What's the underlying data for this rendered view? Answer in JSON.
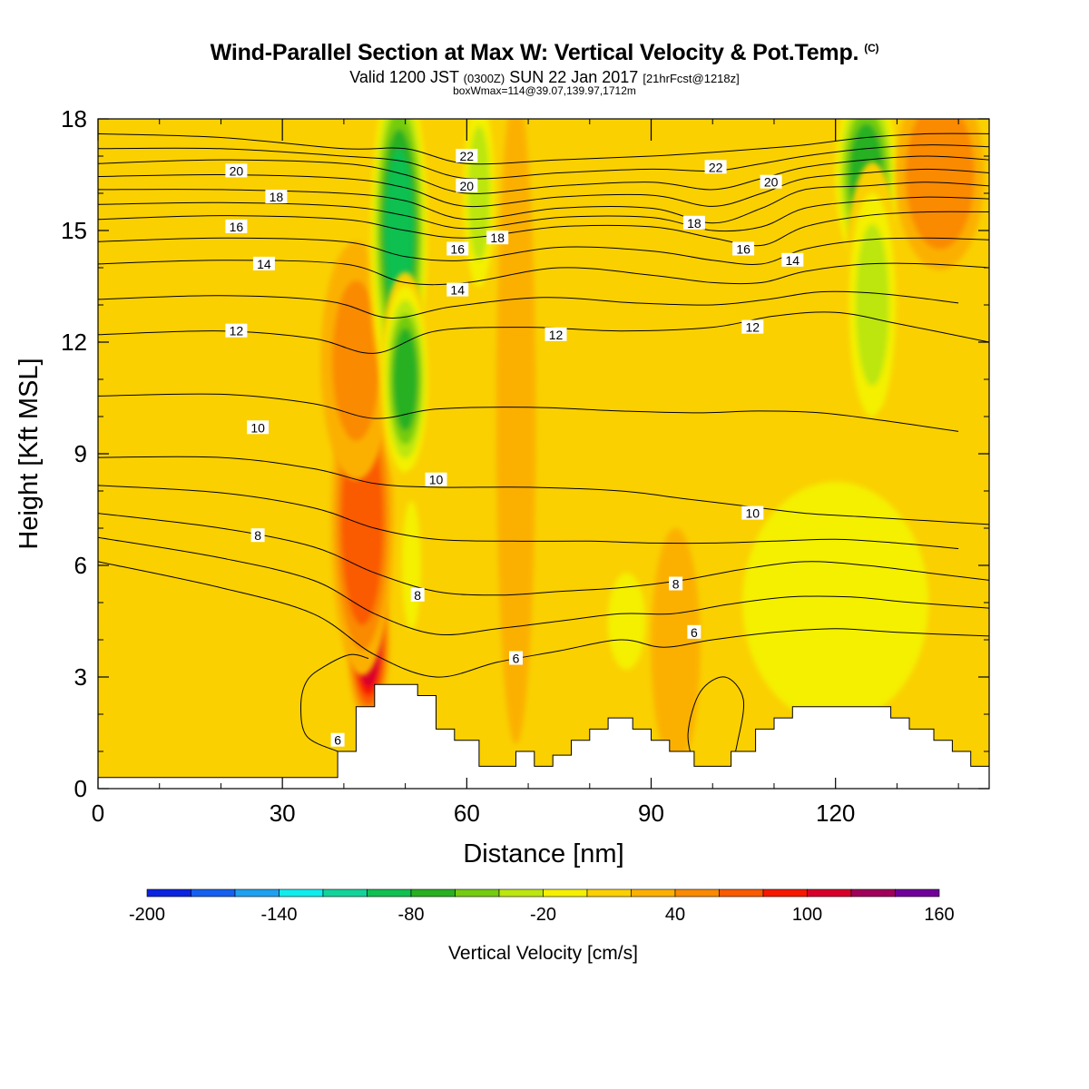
{
  "header": {
    "title": "Wind-Parallel Section at Max W: Vertical Velocity & Pot.Temp.",
    "title_unit": "(C)",
    "valid_prefix": "Valid 1200 JST",
    "valid_utc": "(0300Z)",
    "valid_date": "SUN 22 Jan 2017",
    "forecast": "[21hrFcst@1218z]",
    "box_info": "boxWmax=114@39.07,139.97,1712m"
  },
  "chart_data": {
    "type": "heatmap",
    "xlabel": "Distance [nm]",
    "ylabel": "Height [Kft MSL]",
    "xlim": [
      0,
      145
    ],
    "ylim": [
      0,
      18
    ],
    "x_ticks": [
      "0",
      "30",
      "60",
      "90",
      "120"
    ],
    "y_ticks": [
      "0",
      "3",
      "6",
      "9",
      "12",
      "15",
      "18"
    ],
    "colorbar": {
      "label": "Vertical Velocity [cm/s]",
      "tick_labels": [
        "-200",
        "-140",
        "-80",
        "-20",
        "40",
        "100",
        "160"
      ],
      "min": -200,
      "max": 160,
      "step": 20,
      "colors": [
        "#0b24e0",
        "#1660f0",
        "#1ea0f0",
        "#10ecec",
        "#12d49a",
        "#10c050",
        "#28b020",
        "#74cc10",
        "#bce610",
        "#f4f000",
        "#fad000",
        "#fbb000",
        "#fa8a00",
        "#fa5a00",
        "#f81800",
        "#d8002a",
        "#a0005a",
        "#70009a"
      ]
    },
    "shading": {
      "background_wcm_s": 10,
      "features": [
        {
          "name": "updraft-core",
          "x": 44,
          "y": 4.0,
          "peak": 114
        },
        {
          "name": "updraft-mid",
          "x": 43,
          "y": 7.2,
          "peak": 75
        },
        {
          "name": "updraft-upper",
          "x": 42,
          "y": 11.5,
          "peak": 40
        },
        {
          "name": "downdraft-upper",
          "x": 49,
          "y": 15.0,
          "peak": -100
        },
        {
          "name": "downdraft-mid",
          "x": 50,
          "y": 11.0,
          "peak": -65
        },
        {
          "name": "downdraft-low",
          "x": 51,
          "y": 6.0,
          "peak": -20
        },
        {
          "name": "downdraft-right-top",
          "x": 125,
          "y": 16.5,
          "peak": -70
        },
        {
          "name": "downdraft-right-mid",
          "x": 126,
          "y": 13.0,
          "peak": -30
        },
        {
          "name": "weak-down-60",
          "x": 62,
          "y": 16.0,
          "peak": -40
        },
        {
          "name": "weak-down-85",
          "x": 86,
          "y": 4.5,
          "peak": -20
        },
        {
          "name": "weak-down-128",
          "x": 128,
          "y": 7.0,
          "peak": -15
        },
        {
          "name": "right-low-region",
          "x": 120,
          "y": 5.0,
          "peak": -5
        },
        {
          "name": "right-top-updraft",
          "x": 137,
          "y": 16.5,
          "peak": 45
        },
        {
          "name": "updraft-68",
          "x": 68,
          "y": 10.0,
          "peak": 35
        },
        {
          "name": "updraft-95",
          "x": 94,
          "y": 3.8,
          "peak": 30
        }
      ]
    },
    "theta_contours": [
      {
        "value": 6,
        "points": [
          [
            0,
            6.1
          ],
          [
            20,
            5.4
          ],
          [
            35,
            4.7
          ],
          [
            45,
            3.6
          ],
          [
            55,
            3.0
          ],
          [
            65,
            3.4
          ],
          [
            75,
            3.7
          ],
          [
            85,
            4.0
          ],
          [
            92,
            3.8
          ],
          [
            100,
            4.0
          ],
          [
            110,
            4.2
          ],
          [
            120,
            4.3
          ],
          [
            130,
            4.2
          ],
          [
            145,
            4.1
          ]
        ]
      },
      {
        "value": 8,
        "points": [
          [
            0,
            7.4
          ],
          [
            20,
            7.0
          ],
          [
            35,
            6.5
          ],
          [
            45,
            5.8
          ],
          [
            55,
            5.3
          ],
          [
            65,
            5.2
          ],
          [
            75,
            5.3
          ],
          [
            85,
            5.4
          ],
          [
            95,
            5.6
          ],
          [
            105,
            5.9
          ],
          [
            115,
            6.1
          ],
          [
            125,
            6.0
          ],
          [
            135,
            5.8
          ],
          [
            145,
            5.6
          ]
        ]
      },
      {
        "value": 10,
        "points": [
          [
            0,
            8.9
          ],
          [
            20,
            8.9
          ],
          [
            35,
            8.6
          ],
          [
            45,
            8.2
          ],
          [
            55,
            8.1
          ],
          [
            70,
            8.1
          ],
          [
            85,
            8.0
          ],
          [
            95,
            7.8
          ],
          [
            105,
            7.6
          ],
          [
            115,
            7.4
          ],
          [
            125,
            7.3
          ],
          [
            135,
            7.2
          ],
          [
            145,
            7.1
          ]
        ]
      },
      {
        "value": 12,
        "points": [
          [
            0,
            12.2
          ],
          [
            20,
            12.3
          ],
          [
            35,
            12.1
          ],
          [
            45,
            11.7
          ],
          [
            55,
            12.3
          ],
          [
            70,
            12.4
          ],
          [
            85,
            12.3
          ],
          [
            100,
            12.4
          ],
          [
            110,
            12.7
          ],
          [
            120,
            12.8
          ],
          [
            130,
            12.5
          ],
          [
            145,
            12.0
          ]
        ]
      },
      {
        "value": 14,
        "points": [
          [
            0,
            14.1
          ],
          [
            20,
            14.2
          ],
          [
            40,
            14.1
          ],
          [
            50,
            13.6
          ],
          [
            60,
            13.6
          ],
          [
            75,
            14.0
          ],
          [
            90,
            13.8
          ],
          [
            100,
            13.6
          ],
          [
            108,
            13.6
          ],
          [
            115,
            13.9
          ],
          [
            125,
            14.1
          ],
          [
            135,
            14.1
          ],
          [
            145,
            14.0
          ]
        ]
      },
      {
        "value": 16,
        "points": [
          [
            0,
            15.3
          ],
          [
            20,
            15.4
          ],
          [
            40,
            15.3
          ],
          [
            50,
            15.0
          ],
          [
            60,
            14.8
          ],
          [
            75,
            15.1
          ],
          [
            90,
            15.1
          ],
          [
            100,
            14.8
          ],
          [
            108,
            14.6
          ],
          [
            115,
            15.1
          ],
          [
            125,
            15.4
          ],
          [
            135,
            15.5
          ],
          [
            145,
            15.5
          ]
        ]
      },
      {
        "value": 18,
        "points": [
          [
            0,
            16.1
          ],
          [
            20,
            16.1
          ],
          [
            40,
            16.0
          ],
          [
            50,
            15.8
          ],
          [
            60,
            15.3
          ],
          [
            75,
            15.6
          ],
          [
            90,
            15.6
          ],
          [
            100,
            15.2
          ],
          [
            108,
            15.6
          ],
          [
            115,
            16.1
          ],
          [
            125,
            16.2
          ],
          [
            135,
            16.3
          ],
          [
            145,
            16.2
          ]
        ]
      },
      {
        "value": 20,
        "points": [
          [
            0,
            16.8
          ],
          [
            20,
            16.9
          ],
          [
            40,
            16.8
          ],
          [
            50,
            16.5
          ],
          [
            60,
            16.0
          ],
          [
            75,
            16.2
          ],
          [
            90,
            16.3
          ],
          [
            100,
            16.1
          ],
          [
            108,
            16.4
          ],
          [
            115,
            16.7
          ],
          [
            125,
            16.9
          ],
          [
            135,
            17.0
          ],
          [
            145,
            16.9
          ]
        ]
      },
      {
        "value": 22,
        "points": [
          [
            0,
            17.6
          ],
          [
            20,
            17.5
          ],
          [
            40,
            17.2
          ],
          [
            50,
            17.2
          ],
          [
            60,
            16.8
          ],
          [
            75,
            16.9
          ],
          [
            90,
            17.0
          ],
          [
            100,
            17.1
          ],
          [
            108,
            17.2
          ],
          [
            115,
            17.3
          ],
          [
            125,
            17.5
          ],
          [
            135,
            17.6
          ],
          [
            145,
            17.6
          ]
        ]
      }
    ],
    "contour_labels": [
      {
        "text": "20",
        "x": 22.5,
        "y": 16.6
      },
      {
        "text": "18",
        "x": 29,
        "y": 15.9
      },
      {
        "text": "16",
        "x": 22.5,
        "y": 15.1
      },
      {
        "text": "14",
        "x": 27,
        "y": 14.1
      },
      {
        "text": "12",
        "x": 22.5,
        "y": 12.3
      },
      {
        "text": "10",
        "x": 26,
        "y": 9.7
      },
      {
        "text": "8",
        "x": 26,
        "y": 6.8
      },
      {
        "text": "6",
        "x": 39,
        "y": 1.3
      },
      {
        "text": "22",
        "x": 60,
        "y": 17.0
      },
      {
        "text": "20",
        "x": 60,
        "y": 16.2
      },
      {
        "text": "18",
        "x": 65,
        "y": 14.8
      },
      {
        "text": "16",
        "x": 58.5,
        "y": 14.5
      },
      {
        "text": "14",
        "x": 58.5,
        "y": 13.4
      },
      {
        "text": "12",
        "x": 74.5,
        "y": 12.2
      },
      {
        "text": "10",
        "x": 55,
        "y": 8.3
      },
      {
        "text": "8",
        "x": 52,
        "y": 5.2
      },
      {
        "text": "6",
        "x": 68,
        "y": 3.5
      },
      {
        "text": "22",
        "x": 100.5,
        "y": 16.7
      },
      {
        "text": "20",
        "x": 109.5,
        "y": 16.3
      },
      {
        "text": "18",
        "x": 97,
        "y": 15.2
      },
      {
        "text": "16",
        "x": 105,
        "y": 14.5
      },
      {
        "text": "14",
        "x": 113,
        "y": 14.2
      },
      {
        "text": "12",
        "x": 106.5,
        "y": 12.4
      },
      {
        "text": "10",
        "x": 106.5,
        "y": 7.4
      },
      {
        "text": "8",
        "x": 94,
        "y": 5.5
      },
      {
        "text": "6",
        "x": 97,
        "y": 4.2
      }
    ],
    "terrain_kft": [
      [
        0,
        0.3
      ],
      [
        39,
        0.3
      ],
      [
        39,
        1.0
      ],
      [
        42,
        1.0
      ],
      [
        42,
        2.2
      ],
      [
        45,
        2.2
      ],
      [
        45,
        2.8
      ],
      [
        52,
        2.8
      ],
      [
        52,
        2.5
      ],
      [
        55,
        2.5
      ],
      [
        55,
        1.6
      ],
      [
        58,
        1.6
      ],
      [
        58,
        1.3
      ],
      [
        62,
        1.3
      ],
      [
        62,
        0.6
      ],
      [
        68,
        0.6
      ],
      [
        68,
        1.0
      ],
      [
        71,
        1.0
      ],
      [
        71,
        0.6
      ],
      [
        74,
        0.6
      ],
      [
        74,
        0.9
      ],
      [
        77,
        0.9
      ],
      [
        77,
        1.3
      ],
      [
        80,
        1.3
      ],
      [
        80,
        1.6
      ],
      [
        83,
        1.6
      ],
      [
        83,
        1.9
      ],
      [
        87,
        1.9
      ],
      [
        87,
        1.6
      ],
      [
        90,
        1.6
      ],
      [
        90,
        1.3
      ],
      [
        93,
        1.3
      ],
      [
        93,
        1.0
      ],
      [
        97,
        1.0
      ],
      [
        97,
        0.6
      ],
      [
        103,
        0.6
      ],
      [
        103,
        1.0
      ],
      [
        107,
        1.0
      ],
      [
        107,
        1.6
      ],
      [
        110,
        1.6
      ],
      [
        110,
        1.9
      ],
      [
        113,
        1.9
      ],
      [
        113,
        2.2
      ],
      [
        129,
        2.2
      ],
      [
        129,
        1.9
      ],
      [
        132,
        1.9
      ],
      [
        132,
        1.6
      ],
      [
        136,
        1.6
      ],
      [
        136,
        1.3
      ],
      [
        139,
        1.3
      ],
      [
        139,
        1.0
      ],
      [
        142,
        1.0
      ],
      [
        142,
        0.6
      ],
      [
        145,
        0.6
      ],
      [
        145,
        0
      ]
    ],
    "extra_contours": [
      {
        "name": "closed-loop-left",
        "points": [
          [
            39,
            1.0
          ],
          [
            34,
            1.4
          ],
          [
            33,
            2.2
          ],
          [
            34,
            2.9
          ],
          [
            37,
            3.3
          ],
          [
            41,
            3.6
          ],
          [
            44,
            3.5
          ]
        ]
      },
      {
        "name": "closed-loop-right",
        "points": [
          [
            97,
            0.6
          ],
          [
            96,
            1.5
          ],
          [
            98,
            2.6
          ],
          [
            102,
            3.0
          ],
          [
            105,
            2.4
          ],
          [
            104,
            1.2
          ],
          [
            103,
            0.6
          ]
        ]
      }
    ]
  }
}
